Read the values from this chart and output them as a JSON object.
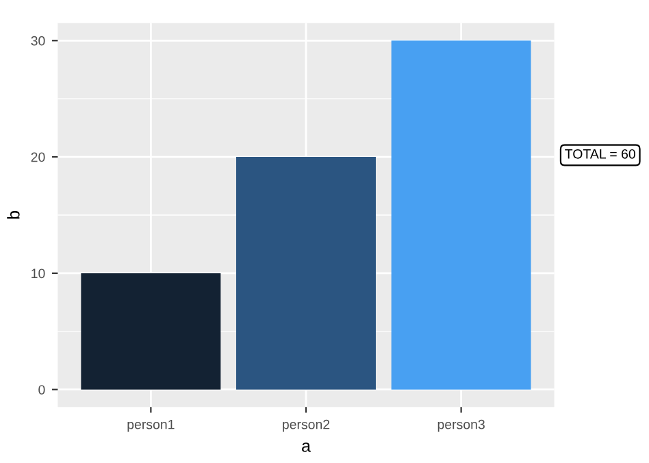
{
  "chart_data": {
    "type": "bar",
    "xlabel": "a",
    "ylabel": "b",
    "categories": [
      "person1",
      "person2",
      "person3"
    ],
    "values": [
      10,
      20,
      30
    ],
    "colors": [
      "#132233",
      "#2b5581",
      "#48a0f2"
    ],
    "ylim": [
      -1.5,
      31.5
    ],
    "yticks": [
      0,
      10,
      20,
      30
    ],
    "grid": true,
    "annotations": [
      "TOTAL = 60"
    ]
  }
}
